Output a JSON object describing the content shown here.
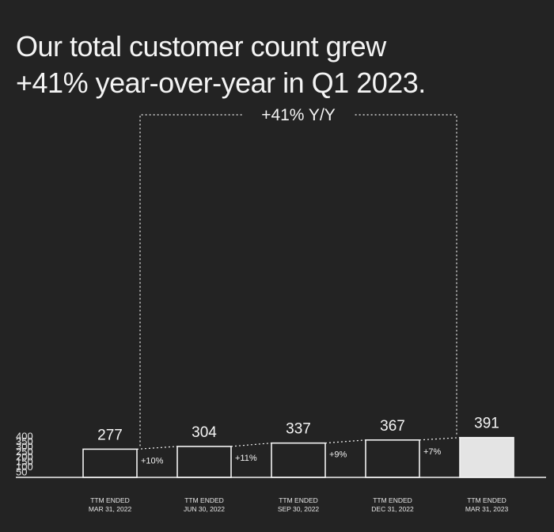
{
  "title": {
    "line1": "Our total customer count grew",
    "line2": "+41% year-over-year in Q1 2023."
  },
  "colors": {
    "background": "#232323",
    "bar_outline": "#f2f2f2",
    "highlight_bar": "#e4e4e4",
    "text": "#f2f2f2"
  },
  "chart_data": {
    "type": "bar",
    "title": "Our total customer count grew +41% year-over-year in Q1 2023.",
    "categories": [
      [
        "TTM ENDED",
        "MAR 31, 2022"
      ],
      [
        "TTM ENDED",
        "JUN 30, 2022"
      ],
      [
        "TTM ENDED",
        "SEP 30, 2022"
      ],
      [
        "TTM ENDED",
        "DEC 31, 2022"
      ],
      [
        "TTM ENDED",
        "MAR 31, 2023"
      ]
    ],
    "values": [
      277,
      304,
      337,
      367,
      391
    ],
    "value_labels": [
      "277",
      "304",
      "337",
      "367",
      "391"
    ],
    "growth_labels": [
      "+10%",
      "+11%",
      "+9%",
      "+7%"
    ],
    "total_growth_label": "+41% Y/Y",
    "yticks": [
      50,
      100,
      150,
      200,
      250,
      300,
      350,
      400
    ],
    "ylim": [
      0,
      400
    ],
    "highlighted_index": 4,
    "grid": false,
    "legend": "none"
  }
}
